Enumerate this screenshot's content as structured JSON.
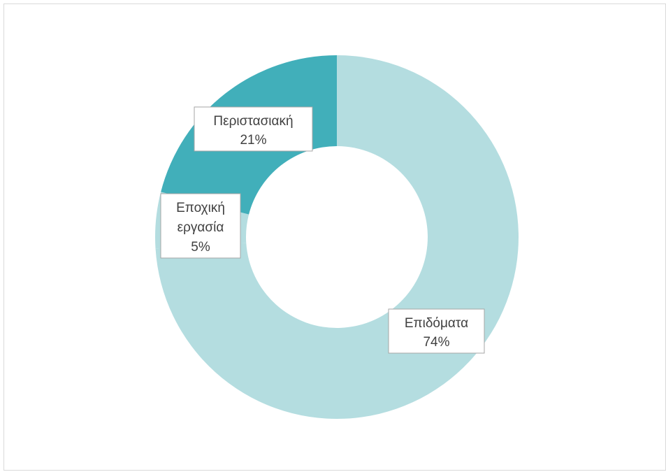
{
  "chart_data": {
    "type": "pie",
    "variant": "donut",
    "slices": [
      {
        "label": "Επιδόματα",
        "value": 74,
        "value_label": "74%",
        "color": "#b4dde0"
      },
      {
        "label": "Εποχική εργασία",
        "label_lines": [
          "Εποχική",
          "εργασία"
        ],
        "value": 5,
        "value_label": "5%",
        "color": "#b4dde0"
      },
      {
        "label": "Περιστασιακή",
        "value": 21,
        "value_label": "21%",
        "color": "#41afba"
      }
    ]
  }
}
